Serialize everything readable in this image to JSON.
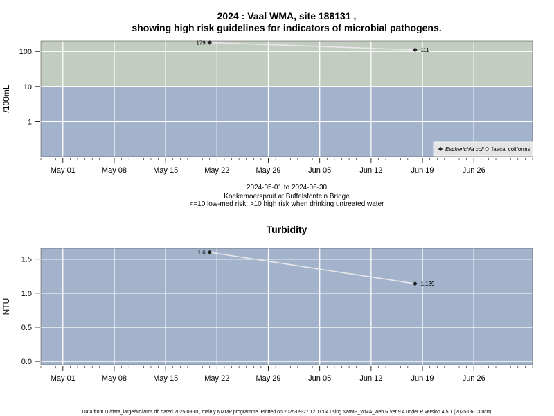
{
  "title_line1": "2024 : Vaal WMA, site 188131 ,",
  "title_line2": "showing high risk guidelines for indicators of microbial pathogens.",
  "caption": {
    "date_range": "2024-05-01 to 2024-06-30",
    "site_name": "Koekemoerspruit at Buffelsfontein Bridge",
    "risk_note": "<=10 low-med risk; >10 high risk when drinking untreated water"
  },
  "footer": "Data from D:/data_large/wq/wms.db dated 2025-08-01, mainly NMMP programme. Plotted on 2025-09-27 12:11:04 using NMMP_WMA_web.R ver 9.4 under R version 4.5.1 (2025-06-13 ucrt)",
  "chart_data": [
    {
      "type": "line",
      "title": "",
      "ylabel": "/100mL",
      "yscale": "log",
      "xlim": [
        "2024-04-28",
        "2024-07-04"
      ],
      "ylim": [
        0.1,
        200
      ],
      "x_ticks": [
        "May 01",
        "May 08",
        "May 15",
        "May 22",
        "May 29",
        "Jun 05",
        "Jun 12",
        "Jun 19",
        "Jun 26"
      ],
      "y_ticks": [
        "1",
        "10",
        "100"
      ],
      "y_tick_values": [
        1,
        10,
        100
      ],
      "grid": true,
      "risk_bands": [
        {
          "from": 0.1,
          "to": 10,
          "color": "#a3b3cb",
          "meaning": "low-med risk"
        },
        {
          "from": 10,
          "to": 200,
          "color": "#c2ccc0",
          "meaning": "high risk"
        }
      ],
      "series": [
        {
          "name": "Escherichia coli",
          "marker": "filled-diamond",
          "color": "#e8e8e8",
          "x": [
            "2024-05-21",
            "2024-06-18"
          ],
          "y": [
            179,
            111
          ],
          "labels": [
            "179",
            "111"
          ]
        }
      ],
      "legend": {
        "position": "bottom-right",
        "entries": [
          {
            "label": "Escherichia coli",
            "marker": "filled-diamond",
            "italic": true
          },
          {
            "label": "faecal coliforms",
            "marker": "open-diamond",
            "italic": false
          }
        ]
      }
    },
    {
      "type": "line",
      "title": "Turbidity",
      "ylabel": "NTU",
      "yscale": "linear",
      "xlim": [
        "2024-04-28",
        "2024-07-04"
      ],
      "ylim": [
        -0.05,
        1.66
      ],
      "x_ticks": [
        "May 01",
        "May 08",
        "May 15",
        "May 22",
        "May 29",
        "Jun 05",
        "Jun 12",
        "Jun 19",
        "Jun 26"
      ],
      "y_ticks": [
        "0.0",
        "0.5",
        "1.0",
        "1.5"
      ],
      "y_tick_values": [
        0,
        0.5,
        1,
        1.5
      ],
      "grid": true,
      "background": "#a3b3cb",
      "series": [
        {
          "name": "Turbidity",
          "marker": "filled-diamond",
          "color": "#e8e8e8",
          "x": [
            "2024-05-21",
            "2024-06-18"
          ],
          "y": [
            1.6,
            1.139
          ],
          "labels": [
            "1.6",
            "1.139"
          ]
        }
      ]
    }
  ]
}
